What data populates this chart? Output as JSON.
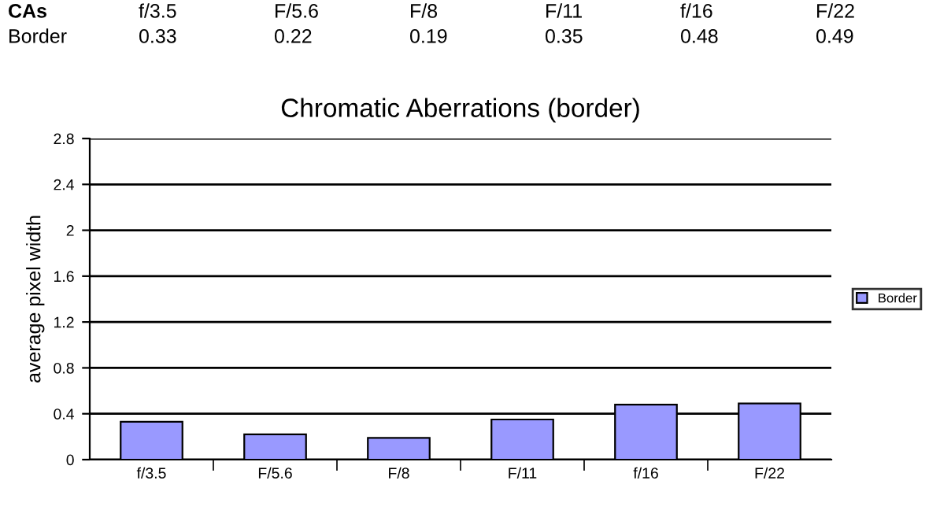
{
  "chart_data": {
    "type": "bar",
    "title": "Chromatic Aberrations (border)",
    "ylabel": "average pixel width",
    "annotations": [
      "CAs"
    ],
    "categories": [
      "f/3.5",
      "F/5.6",
      "F/8",
      "F/11",
      "f/16",
      "F/22"
    ],
    "series": [
      {
        "name": "Border",
        "color": "#9999ff",
        "values": [
          0.33,
          0.22,
          0.19,
          0.35,
          0.48,
          0.49
        ]
      }
    ],
    "ylim": [
      0,
      2.8
    ],
    "yticks": [
      0,
      0.4,
      0.8,
      1.2,
      1.6,
      2,
      2.4,
      2.8
    ],
    "grid": "y",
    "legend": "right",
    "data_labels": true
  }
}
